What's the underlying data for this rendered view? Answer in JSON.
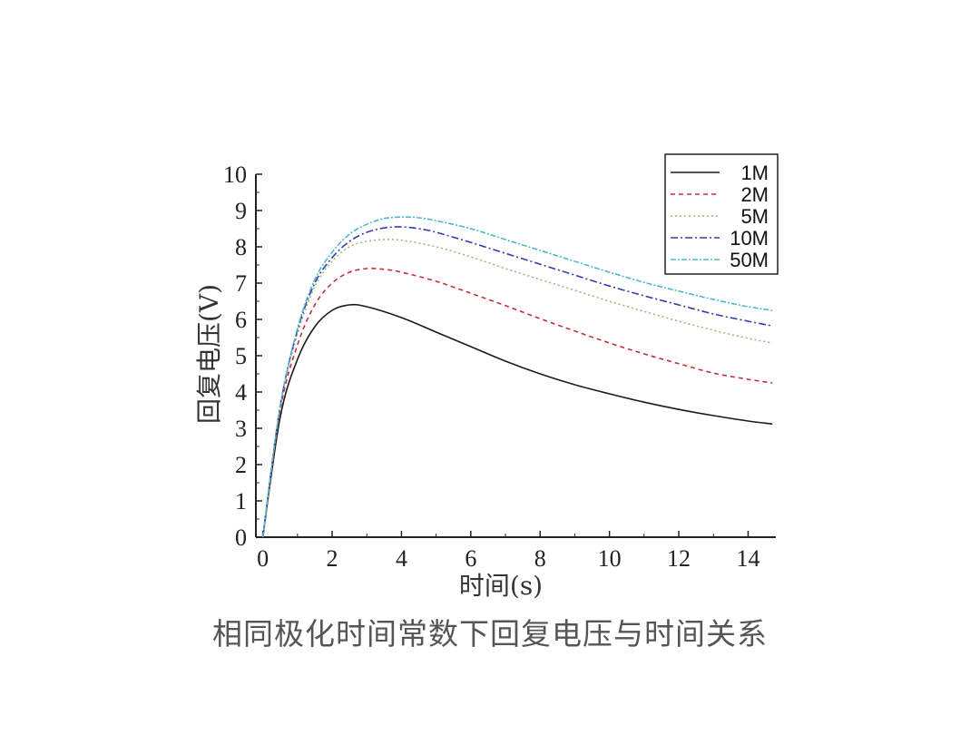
{
  "caption": "相同极化时间常数下回复电压与时间关系",
  "chart_data": {
    "type": "line",
    "xlabel": "时间(s)",
    "ylabel": "回复电压(V)",
    "xlim": [
      -0.2,
      14.8
    ],
    "ylim": [
      0,
      10
    ],
    "xticks": [
      0,
      2,
      4,
      6,
      8,
      10,
      12,
      14
    ],
    "yticks": [
      0,
      1,
      2,
      3,
      4,
      5,
      6,
      7,
      8,
      9,
      10
    ],
    "legend_position": "top-right",
    "series": [
      {
        "name": "1M",
        "color": "#1a1a1a",
        "dash": "solid",
        "x": [
          0,
          0.5,
          1,
          1.5,
          2,
          2.5,
          3,
          4,
          5,
          6,
          7,
          8,
          9,
          10,
          11,
          12,
          13,
          14,
          14.7
        ],
        "y": [
          0,
          3.3,
          4.9,
          5.8,
          6.25,
          6.4,
          6.35,
          6.05,
          5.65,
          5.25,
          4.85,
          4.5,
          4.2,
          3.95,
          3.72,
          3.52,
          3.35,
          3.2,
          3.12
        ]
      },
      {
        "name": "2M",
        "color": "#c0303a",
        "dash": "5,4",
        "x": [
          0,
          0.5,
          1,
          1.5,
          2,
          2.5,
          3,
          3.5,
          4,
          5,
          6,
          7,
          8,
          9,
          10,
          11,
          12,
          13,
          14,
          14.7
        ],
        "y": [
          0,
          3.5,
          5.3,
          6.4,
          7.0,
          7.3,
          7.4,
          7.38,
          7.3,
          7.05,
          6.72,
          6.38,
          6.02,
          5.68,
          5.35,
          5.05,
          4.78,
          4.52,
          4.35,
          4.25
        ]
      },
      {
        "name": "5M",
        "color": "#9ab87a",
        "dash": "2,3",
        "x": [
          0,
          0.5,
          1,
          1.5,
          2,
          2.5,
          3,
          3.5,
          4,
          5,
          6,
          7,
          8,
          9,
          10,
          11,
          12,
          13,
          14,
          14.7
        ],
        "y": [
          0,
          3.6,
          5.6,
          6.9,
          7.6,
          8.0,
          8.15,
          8.2,
          8.18,
          8.0,
          7.72,
          7.4,
          7.1,
          6.8,
          6.5,
          6.22,
          5.95,
          5.7,
          5.48,
          5.35
        ]
      },
      {
        "name": "10M",
        "color": "#3a3ab0",
        "dash": "8,3,2,3",
        "x": [
          0,
          0.5,
          1,
          1.5,
          2,
          2.5,
          3,
          3.5,
          4,
          4.5,
          5,
          6,
          7,
          8,
          9,
          10,
          11,
          12,
          13,
          14,
          14.7
        ],
        "y": [
          0,
          3.6,
          5.7,
          7.0,
          7.7,
          8.15,
          8.4,
          8.52,
          8.55,
          8.5,
          8.4,
          8.12,
          7.82,
          7.52,
          7.22,
          6.92,
          6.65,
          6.4,
          6.15,
          5.95,
          5.82
        ]
      },
      {
        "name": "50M",
        "color": "#4fb8c8",
        "dash": "6,2,2,2",
        "x": [
          0,
          0.5,
          1,
          1.5,
          2,
          2.5,
          3,
          3.5,
          4,
          4.5,
          5,
          6,
          7,
          8,
          9,
          10,
          11,
          12,
          13,
          14,
          14.7
        ],
        "y": [
          0,
          3.6,
          5.75,
          7.1,
          7.85,
          8.35,
          8.62,
          8.78,
          8.82,
          8.8,
          8.72,
          8.5,
          8.2,
          7.9,
          7.6,
          7.3,
          7.02,
          6.78,
          6.55,
          6.35,
          6.25
        ]
      }
    ]
  }
}
